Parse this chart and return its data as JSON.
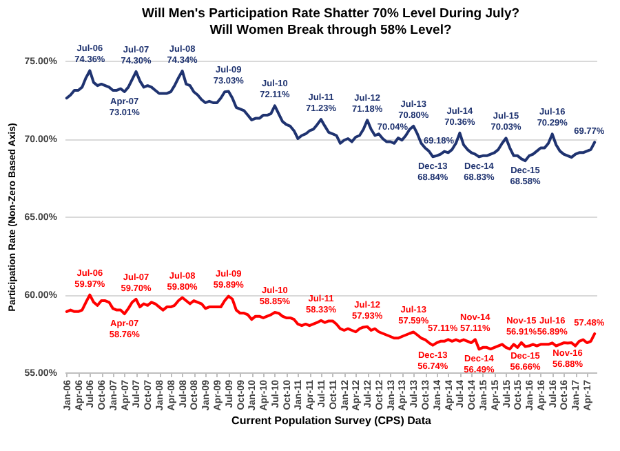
{
  "chart_data": {
    "type": "line",
    "title": "Will Men's Participation Rate Shatter 70% Level During July?\nWill Women Break through 58% Level?",
    "xlabel": "Current Population Survey (CPS) Data",
    "ylabel": "Participation Rate (Non-Zero Based Axis)",
    "grid": "y",
    "ylim": [
      55,
      75
    ],
    "yticks": [
      {
        "value": 55,
        "label": "55.00%"
      },
      {
        "value": 60,
        "label": "60.00%"
      },
      {
        "value": 65,
        "label": "65.00%"
      },
      {
        "value": 70,
        "label": "70.00%"
      },
      {
        "value": 75,
        "label": "75.00%"
      }
    ],
    "categories": [
      "Jan-06",
      null,
      null,
      "Apr-06",
      null,
      null,
      "Jul-06",
      null,
      null,
      "Oct-06",
      null,
      null,
      "Jan-07",
      null,
      null,
      "Apr-07",
      null,
      null,
      "Jul-07",
      null,
      null,
      "Oct-07",
      null,
      null,
      "Jan-08",
      null,
      null,
      "Apr-08",
      null,
      null,
      "Jul-08",
      null,
      null,
      "Oct-08",
      null,
      null,
      "Jan-09",
      null,
      null,
      "Apr-09",
      null,
      null,
      "Jul-09",
      null,
      null,
      "Oct-09",
      null,
      null,
      "Jan-10",
      null,
      null,
      "Apr-10",
      null,
      null,
      "Jul-10",
      null,
      null,
      "Oct-10",
      null,
      null,
      "Jan-11",
      null,
      null,
      "Apr-11",
      null,
      null,
      "Jul-11",
      null,
      null,
      "Oct-11",
      null,
      null,
      "Jan-12",
      null,
      null,
      "Apr-12",
      null,
      null,
      "Jul-12",
      null,
      null,
      "Oct-12",
      null,
      null,
      "Jan-13",
      null,
      null,
      "Apr-13",
      null,
      null,
      "Jul-13",
      null,
      null,
      "Oct-13",
      null,
      null,
      "Jan-14",
      null,
      null,
      "Apr-14",
      null,
      null,
      "Jul-14",
      null,
      null,
      "Oct-14",
      null,
      null,
      "Jan-15",
      null,
      null,
      "Apr-15",
      null,
      null,
      "Jul-15",
      null,
      null,
      "Oct-15",
      null,
      null,
      "Jan-16",
      null,
      null,
      "Apr-16",
      null,
      null,
      "Jul-16",
      null,
      null,
      "Oct-16",
      null,
      null,
      "Jan-17",
      null,
      null,
      "Apr-17",
      null,
      null
    ],
    "series": [
      {
        "color": "#1f3370",
        "values": [
          72.6,
          72.8,
          73.1,
          73.1,
          73.3,
          73.9,
          74.36,
          73.6,
          73.4,
          73.5,
          73.4,
          73.3,
          73.1,
          73.1,
          73.2,
          73.01,
          73.3,
          73.8,
          74.3,
          73.7,
          73.3,
          73.4,
          73.3,
          73.1,
          72.9,
          72.9,
          72.9,
          73.0,
          73.4,
          73.9,
          74.34,
          73.5,
          73.4,
          73.0,
          72.8,
          72.5,
          72.3,
          72.4,
          72.3,
          72.3,
          72.6,
          73.0,
          73.03,
          72.6,
          72.0,
          71.9,
          71.8,
          71.5,
          71.2,
          71.3,
          71.3,
          71.5,
          71.5,
          71.6,
          72.11,
          71.6,
          71.1,
          70.9,
          70.8,
          70.5,
          70.0,
          70.2,
          70.3,
          70.5,
          70.6,
          70.9,
          71.23,
          70.8,
          70.4,
          70.3,
          70.2,
          69.7,
          69.9,
          70.0,
          69.8,
          70.1,
          70.2,
          70.6,
          71.18,
          70.6,
          70.2,
          70.3,
          70.0,
          69.8,
          69.8,
          69.7,
          70.04,
          69.9,
          70.2,
          70.6,
          70.8,
          70.3,
          69.7,
          69.4,
          69.2,
          68.84,
          68.9,
          69.0,
          69.18,
          69.1,
          69.3,
          69.7,
          70.36,
          69.6,
          69.3,
          69.1,
          69.0,
          68.83,
          68.9,
          68.9,
          69.0,
          69.1,
          69.3,
          69.7,
          70.03,
          69.4,
          68.9,
          68.9,
          68.7,
          68.58,
          68.9,
          69.0,
          69.2,
          69.4,
          69.4,
          69.7,
          70.29,
          69.6,
          69.2,
          69.0,
          68.9,
          68.8,
          69.0,
          69.1,
          69.1,
          69.2,
          69.3,
          69.77
        ],
        "value_labels": [
          null,
          null,
          null,
          null,
          null,
          null,
          "Jul-06\n74.36%",
          null,
          null,
          null,
          null,
          null,
          null,
          null,
          null,
          "Apr-07\n73.01%",
          null,
          null,
          "Jul-07\n74.30%",
          null,
          null,
          null,
          null,
          null,
          null,
          null,
          null,
          null,
          null,
          null,
          "Jul-08\n74.34%",
          null,
          null,
          null,
          null,
          null,
          null,
          null,
          null,
          null,
          null,
          null,
          "Jul-09\n73.03%",
          null,
          null,
          null,
          null,
          null,
          null,
          null,
          null,
          null,
          null,
          null,
          "Jul-10\n72.11%",
          null,
          null,
          null,
          null,
          null,
          null,
          null,
          null,
          null,
          null,
          null,
          "Jul-11\n71.23%",
          null,
          null,
          null,
          null,
          null,
          null,
          null,
          null,
          null,
          null,
          null,
          "Jul-12\n71.18%",
          null,
          null,
          null,
          null,
          null,
          null,
          null,
          "70.04%",
          null,
          null,
          null,
          "Jul-13\n70.80%",
          null,
          null,
          null,
          null,
          "Dec-13\n68.84%",
          null,
          null,
          "69.18%",
          null,
          null,
          null,
          "Jul-14\n70.36%",
          null,
          null,
          null,
          null,
          "Dec-14\n68.83%",
          null,
          null,
          null,
          null,
          null,
          null,
          "Jul-15\n70.03%",
          null,
          null,
          null,
          null,
          "Dec-15\n68.58%",
          null,
          null,
          null,
          null,
          null,
          null,
          "Jul-16\n70.29%",
          null,
          null,
          null,
          null,
          null,
          null,
          null,
          null,
          null,
          null,
          "69.77%"
        ]
      },
      {
        "color": "#ff0000",
        "values": [
          58.9,
          59.0,
          58.9,
          58.9,
          59.0,
          59.5,
          59.97,
          59.5,
          59.3,
          59.6,
          59.6,
          59.5,
          59.1,
          59.0,
          59.0,
          58.76,
          59.1,
          59.5,
          59.7,
          59.2,
          59.4,
          59.3,
          59.5,
          59.4,
          59.2,
          59.0,
          59.2,
          59.2,
          59.3,
          59.6,
          59.8,
          59.6,
          59.4,
          59.6,
          59.5,
          59.4,
          59.1,
          59.2,
          59.2,
          59.2,
          59.2,
          59.6,
          59.89,
          59.7,
          59.0,
          58.8,
          58.8,
          58.7,
          58.4,
          58.6,
          58.6,
          58.5,
          58.6,
          58.7,
          58.85,
          58.8,
          58.6,
          58.5,
          58.5,
          58.4,
          58.1,
          58.0,
          58.1,
          58.0,
          58.1,
          58.2,
          58.33,
          58.2,
          58.3,
          58.3,
          58.1,
          57.8,
          57.7,
          57.8,
          57.7,
          57.6,
          57.8,
          57.9,
          57.93,
          57.7,
          57.8,
          57.6,
          57.5,
          57.4,
          57.3,
          57.2,
          57.2,
          57.3,
          57.4,
          57.5,
          57.59,
          57.4,
          57.2,
          57.1,
          56.9,
          56.74,
          56.9,
          57.0,
          57.0,
          57.11,
          57.0,
          57.1,
          57.0,
          57.1,
          57.0,
          56.9,
          57.11,
          56.49,
          56.6,
          56.6,
          56.5,
          56.6,
          56.7,
          56.8,
          56.6,
          56.5,
          56.8,
          56.6,
          56.91,
          56.66,
          56.7,
          56.8,
          56.7,
          56.8,
          56.8,
          56.8,
          56.89,
          56.7,
          56.8,
          56.9,
          56.88,
          56.9,
          56.7,
          57.0,
          57.1,
          56.9,
          57.0,
          57.48
        ],
        "value_labels": [
          null,
          null,
          null,
          null,
          null,
          null,
          "Jul-06\n59.97%",
          null,
          null,
          null,
          null,
          null,
          null,
          null,
          null,
          "Apr-07\n58.76%",
          null,
          null,
          "Jul-07\n59.70%",
          null,
          null,
          null,
          null,
          null,
          null,
          null,
          null,
          null,
          null,
          null,
          "Jul-08\n59.80%",
          null,
          null,
          null,
          null,
          null,
          null,
          null,
          null,
          null,
          null,
          null,
          "Jul-09\n59.89%",
          null,
          null,
          null,
          null,
          null,
          null,
          null,
          null,
          null,
          null,
          null,
          "Jul-10\n58.85%",
          null,
          null,
          null,
          null,
          null,
          null,
          null,
          null,
          null,
          null,
          null,
          "Jul-11\n58.33%",
          null,
          null,
          null,
          null,
          null,
          null,
          null,
          null,
          null,
          null,
          null,
          "Jul-12\n57.93%",
          null,
          null,
          null,
          null,
          null,
          null,
          null,
          null,
          null,
          null,
          null,
          "Jul-13\n57.59%",
          null,
          null,
          null,
          null,
          "Dec-13\n56.74%",
          null,
          null,
          null,
          "57.11%",
          null,
          null,
          null,
          null,
          null,
          null,
          "Nov-14\n57.11%",
          "Dec-14\n56.49%",
          null,
          null,
          null,
          null,
          null,
          null,
          null,
          null,
          null,
          null,
          "Nov-15\n56.91%",
          "Dec-15\n56.66%",
          null,
          null,
          null,
          null,
          null,
          null,
          "Jul-16\n56.89%",
          null,
          null,
          null,
          "Nov-16\n56.88%",
          null,
          null,
          null,
          null,
          null,
          null,
          "57.48%"
        ]
      }
    ]
  }
}
